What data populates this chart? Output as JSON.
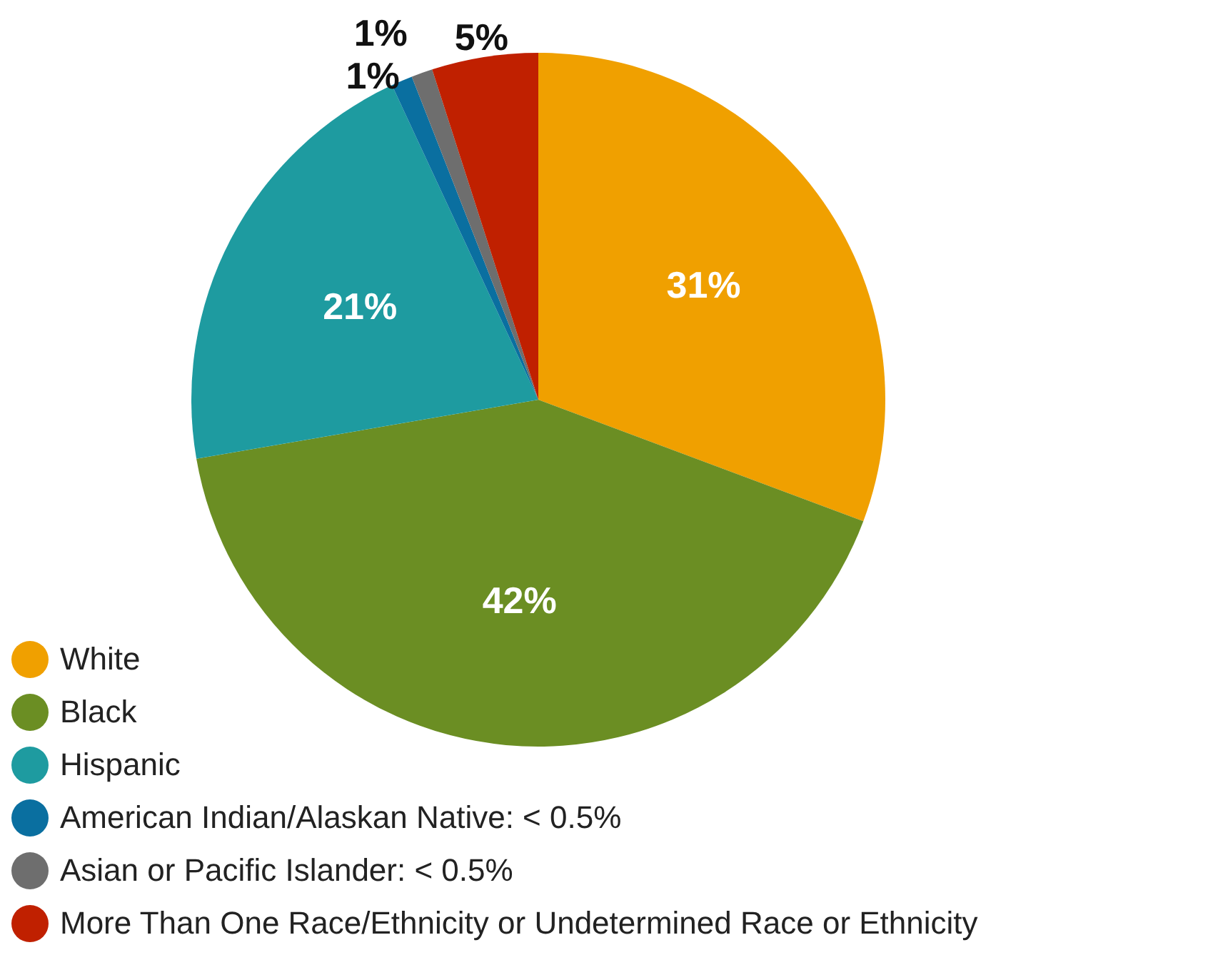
{
  "chart_data": {
    "type": "pie",
    "categories": [
      "White",
      "Black",
      "Hispanic",
      "American Indian/Alaskan Native: < 0.5%",
      "Asian or Pacific Islander: < 0.5%",
      "More Than One Race/Ethnicity or Undetermined Race or Ethnicity"
    ],
    "values": [
      31,
      42,
      21,
      1,
      1,
      5
    ],
    "colors": [
      "#f0a000",
      "#6b8e23",
      "#1e9ba0",
      "#0a6fa0",
      "#6e6e6e",
      "#c02000"
    ],
    "value_labels": [
      "31%",
      "42%",
      "21%",
      "1%",
      "1%",
      "5%"
    ],
    "legend": "bottom left"
  }
}
